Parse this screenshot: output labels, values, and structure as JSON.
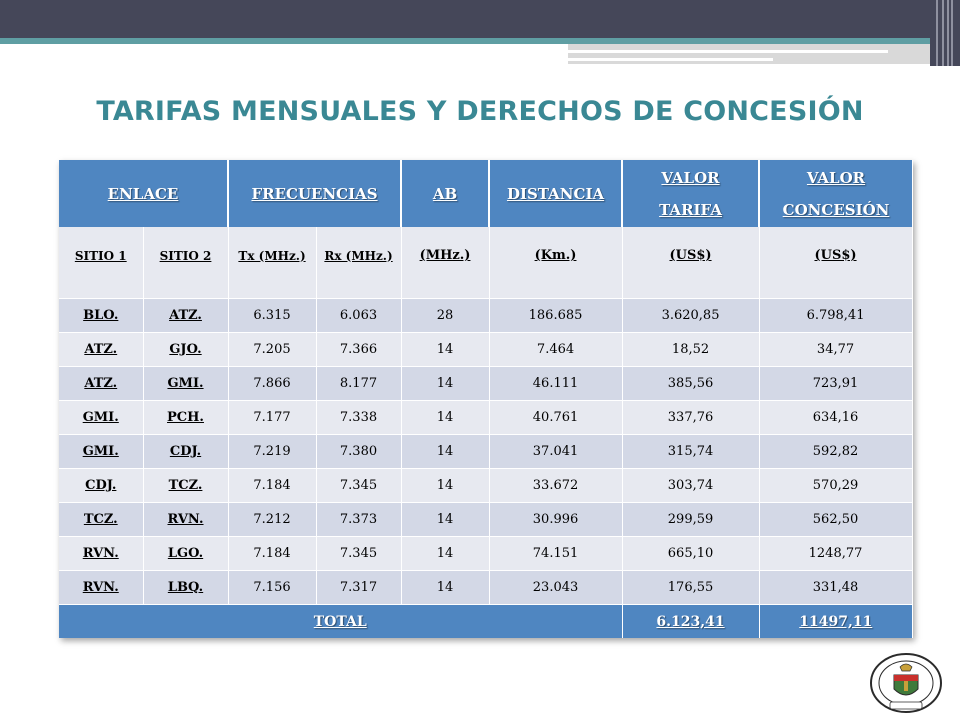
{
  "title": "TARIFAS MENSUALES Y DERECHOS DE CONCESIÓN",
  "header": {
    "enlace": "ENLACE",
    "frecuencias": "FRECUENCIAS",
    "ab": "AB",
    "distancia": "DISTANCIA",
    "valor_tarifa_1": "VALOR",
    "valor_tarifa_2": "TARIFA",
    "valor_concesion_1": "VALOR",
    "valor_concesion_2": "CONCESIÓN"
  },
  "subheader": {
    "sitio1": "SITIO 1",
    "sitio2": "SITIO 2",
    "tx": "Tx (MHz.)",
    "rx": "Rx (MHz.)",
    "ab_unit": "(MHz.)",
    "dist_unit": "(Km.)",
    "tarifa_unit": "(US$)",
    "concesion_unit": "(US$)"
  },
  "rows": [
    {
      "s1": "BLO.",
      "s2": "ATZ.",
      "tx": "6.315",
      "rx": "6.063",
      "ab": "28",
      "dist": "186.685",
      "tarifa": "3.620,85",
      "concesion": "6.798,41"
    },
    {
      "s1": "ATZ.",
      "s2": "GJO.",
      "tx": "7.205",
      "rx": "7.366",
      "ab": "14",
      "dist": "7.464",
      "tarifa": "18,52",
      "concesion": "34,77"
    },
    {
      "s1": "ATZ.",
      "s2": "GMI.",
      "tx": "7.866",
      "rx": "8.177",
      "ab": "14",
      "dist": "46.111",
      "tarifa": "385,56",
      "concesion": "723,91"
    },
    {
      "s1": "GMI.",
      "s2": "PCH.",
      "tx": "7.177",
      "rx": "7.338",
      "ab": "14",
      "dist": "40.761",
      "tarifa": "337,76",
      "concesion": "634,16"
    },
    {
      "s1": "GMI.",
      "s2": "CDJ.",
      "tx": "7.219",
      "rx": "7.380",
      "ab": "14",
      "dist": "37.041",
      "tarifa": "315,74",
      "concesion": "592,82"
    },
    {
      "s1": "CDJ.",
      "s2": "TCZ.",
      "tx": "7.184",
      "rx": "7.345",
      "ab": "14",
      "dist": "33.672",
      "tarifa": "303,74",
      "concesion": "570,29"
    },
    {
      "s1": "TCZ.",
      "s2": "RVN.",
      "tx": "7.212",
      "rx": "7.373",
      "ab": "14",
      "dist": "30.996",
      "tarifa": "299,59",
      "concesion": "562,50"
    },
    {
      "s1": "RVN.",
      "s2": "LGO.",
      "tx": "7.184",
      "rx": "7.345",
      "ab": "14",
      "dist": "74.151",
      "tarifa": "665,10",
      "concesion": "1248,77"
    },
    {
      "s1": "RVN.",
      "s2": "LBQ.",
      "tx": "7.156",
      "rx": "7.317",
      "ab": "14",
      "dist": "23.043",
      "tarifa": "176,55",
      "concesion": "331,48"
    }
  ],
  "total": {
    "label": "TOTAL",
    "tarifa": "6.123,41",
    "concesion": "11497,11"
  },
  "logo": {
    "name": "university-seal",
    "text": "ESCUELA POLITÉCNICA DEL EJÉRCITO ECUADOR"
  }
}
